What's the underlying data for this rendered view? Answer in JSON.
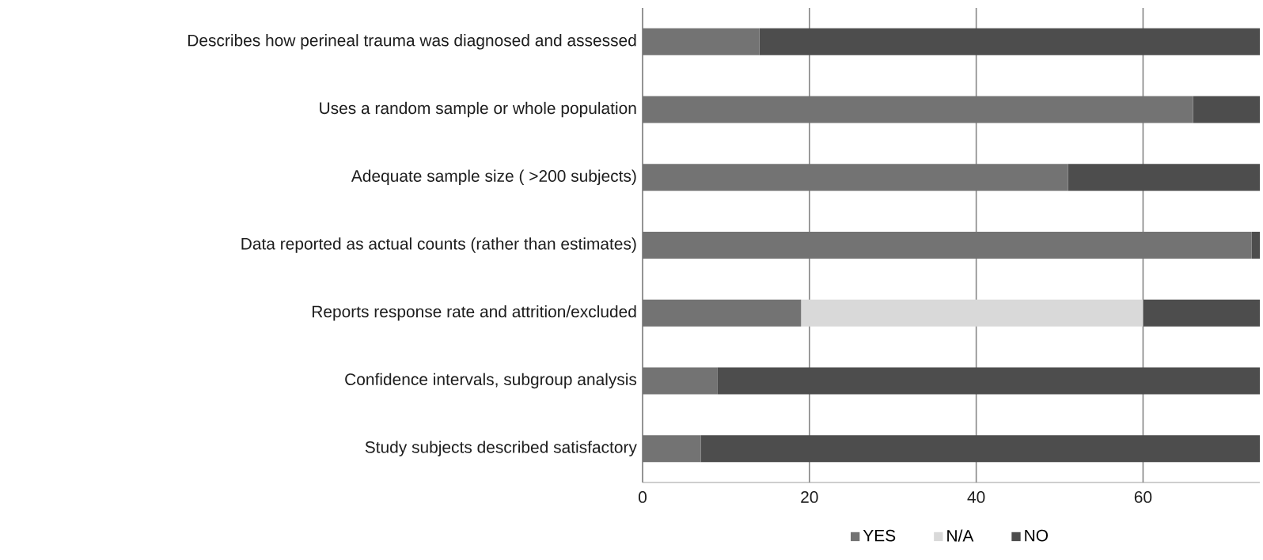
{
  "chart_data": {
    "type": "bar",
    "orientation": "horizontal",
    "stacked": true,
    "categories": [
      "Describes how perineal trauma was diagnosed and assessed",
      "Uses a random sample or whole population",
      "Adequate sample size ( >200 subjects)",
      "Data reported as actual counts (rather than estimates)",
      "Reports response rate and attrition/excluded",
      "Confidence intervals, subgroup analysis",
      "Study subjects described satisfactory"
    ],
    "series": [
      {
        "name": "YES",
        "color": "#737373",
        "values": [
          14,
          66,
          51,
          73,
          19,
          9,
          7
        ]
      },
      {
        "name": "N/A",
        "color": "#d9d9d9",
        "values": [
          0,
          0,
          0,
          0,
          41,
          0,
          0
        ]
      },
      {
        "name": "NO",
        "color": "#4d4d4d",
        "values": [
          60,
          8,
          23,
          1,
          14,
          65,
          67
        ]
      }
    ],
    "xlim": [
      0,
      74
    ],
    "xticks": [
      0,
      20,
      40,
      60
    ],
    "grid": "x",
    "legend": "bottom"
  }
}
